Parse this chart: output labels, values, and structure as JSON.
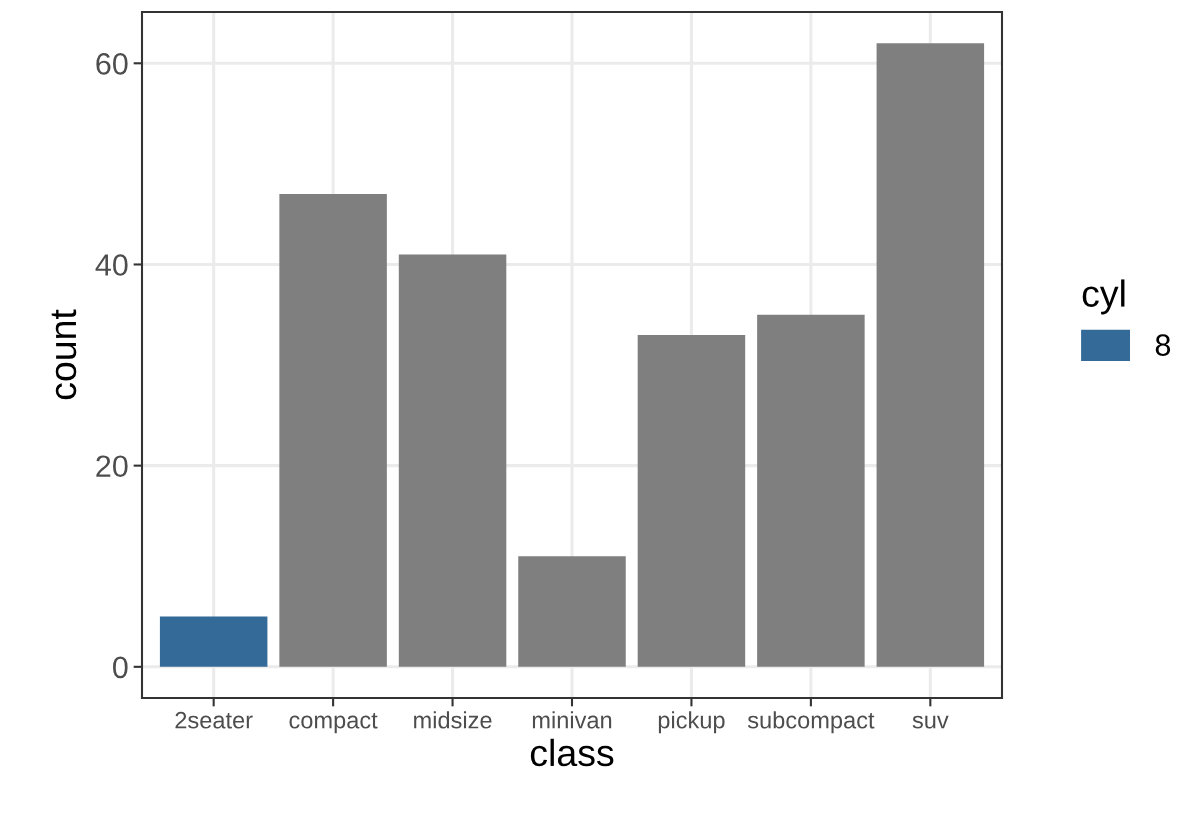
{
  "chart_data": {
    "type": "bar",
    "xlabel": "class",
    "ylabel": "count",
    "legend_title": "cyl",
    "legend": "right",
    "categories": [
      "2seater",
      "compact",
      "midsize",
      "minivan",
      "pickup",
      "subcompact",
      "suv"
    ],
    "series": [
      {
        "name": "8",
        "color": "#336a98",
        "values": [
          5,
          null,
          null,
          null,
          null,
          null,
          null
        ]
      },
      {
        "color": "#7f7f7f",
        "values": [
          null,
          47,
          41,
          11,
          33,
          35,
          62
        ]
      }
    ],
    "ylim": [
      -3.1,
      65.1
    ],
    "yticks": [
      0,
      20,
      40,
      60
    ],
    "grid": true
  }
}
